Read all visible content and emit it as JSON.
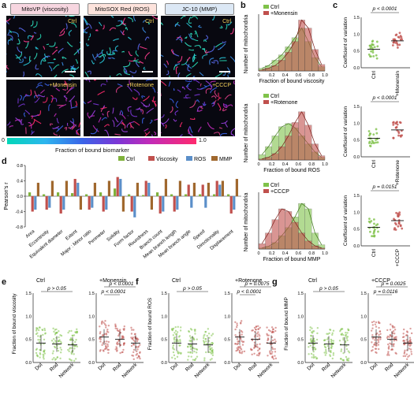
{
  "panel_letters": {
    "a": "a",
    "b": "b",
    "c": "c",
    "d": "d",
    "e": "e",
    "f": "f",
    "g": "g"
  },
  "panel_a": {
    "headers": [
      "MitoVP (viscosity)",
      "MitoSOX Red (ROS)",
      "JC-10 (MMP)"
    ],
    "top_conditions": [
      "Ctrl",
      "Ctrl",
      "Ctrl"
    ],
    "bottom_conditions": [
      "+Monensin",
      "+Rotenone",
      "+CCCP"
    ],
    "colorbar_min": "0",
    "colorbar_max": "1.0",
    "colorbar_label": "Fraction of bound biomarker",
    "header_colors": [
      "#f7d6e0",
      "#fde3dc",
      "#dce8f5"
    ]
  },
  "panel_b": [
    {
      "legend": [
        "Ctrl",
        "+Monensin"
      ],
      "xlabel": "Fraction of bound viscosity",
      "ylabel": "Number of mitochondria"
    },
    {
      "legend": [
        "Ctrl",
        "+Rotenone"
      ],
      "xlabel": "Fraction of bound ROS",
      "ylabel": "Number of mitochondria"
    },
    {
      "legend": [
        "Ctrl",
        "+CCCP"
      ],
      "xlabel": "Fraction of bound MMP",
      "ylabel": "Number of mitochondria"
    }
  ],
  "panel_c": [
    {
      "p": "p < 0.0001",
      "ylabel": "Coefficient of variation",
      "cats": [
        "Ctrl",
        "+Monensin"
      ]
    },
    {
      "p": "p < 0.0001",
      "ylabel": "Coefficient of variation",
      "cats": [
        "Ctrl",
        "+Rotenone"
      ]
    },
    {
      "p": "p = 0.0151",
      "ylabel": "Coefficient of variation",
      "cats": [
        "Ctrl",
        "+CCCP"
      ]
    }
  ],
  "panel_d": {
    "ylabel": "Pearson's r",
    "legend": [
      "Ctrl",
      "Viscosity",
      "ROS",
      "MMP"
    ],
    "colors": [
      "#7fb13b",
      "#c0504d",
      "#5b8fc9",
      "#a0682e"
    ],
    "features": [
      "Area",
      "Eccentricity",
      "Equivalent diameter",
      "Extent",
      "Major : Minor ratio",
      "Perimeter",
      "Solidity",
      "Form factor",
      "Roundness",
      "Branch count",
      "Mean branch length",
      "Mean branch angle",
      "Speed",
      "Directionality",
      "Displacement"
    ]
  },
  "panel_efg": [
    {
      "ylabels": [
        "Fraction of bound viscosity"
      ],
      "titles": [
        "Ctrl",
        "+Monensin"
      ],
      "pvals_left": [
        "p > 0.05"
      ],
      "pvals_right": [
        "p < 0.0001",
        "p < 0.0001"
      ],
      "cats": [
        "Dot",
        "Rod",
        "Network"
      ]
    },
    {
      "ylabels": [
        "Fraction of bound ROS"
      ],
      "titles": [
        "Ctrl",
        "+Rotenone"
      ],
      "pvals_left": [
        "p > 0.05"
      ],
      "pvals_right": [
        "p = 0.0075",
        "p < 0.0001"
      ],
      "cats": [
        "Dot",
        "Rod",
        "Network"
      ]
    },
    {
      "ylabels": [
        "Fraction of bound MMP"
      ],
      "titles": [
        "Ctrl",
        "+CCCP"
      ],
      "pvals_left": [
        "p > 0.05"
      ],
      "pvals_right": [
        "p = 0.0025",
        "p = 0.0116"
      ],
      "cats": [
        "Dot",
        "Rod",
        "Network"
      ]
    }
  ],
  "chart_data": [
    {
      "type": "bar",
      "panel": "b-1",
      "categories": [
        "0",
        "0.1",
        "0.2",
        "0.3",
        "0.4",
        "0.5",
        "0.6",
        "0.7",
        "0.8",
        "0.9"
      ],
      "series": [
        {
          "name": "Ctrl",
          "values": [
            0.05,
            0.1,
            0.2,
            0.3,
            0.45,
            0.62,
            0.8,
            0.55,
            0.25,
            0.08
          ]
        },
        {
          "name": "+Monensin",
          "values": [
            0.02,
            0.05,
            0.1,
            0.2,
            0.35,
            0.55,
            0.95,
            0.8,
            0.4,
            0.12
          ]
        }
      ],
      "xlabel": "Fraction of bound viscosity",
      "ylabel": "Number of mitochondria"
    },
    {
      "type": "bar",
      "panel": "b-2",
      "categories": [
        "0",
        "0.1",
        "0.2",
        "0.3",
        "0.4",
        "0.5",
        "0.6",
        "0.7",
        "0.8",
        "0.9"
      ],
      "series": [
        {
          "name": "Ctrl",
          "values": [
            0.1,
            0.25,
            0.45,
            0.62,
            0.68,
            0.6,
            0.45,
            0.3,
            0.15,
            0.05
          ]
        },
        {
          "name": "+Rotenone",
          "values": [
            0.02,
            0.05,
            0.12,
            0.25,
            0.45,
            0.7,
            0.9,
            0.65,
            0.3,
            0.08
          ]
        }
      ],
      "xlabel": "Fraction of bound ROS",
      "ylabel": "Number of mitochondria"
    },
    {
      "type": "bar",
      "panel": "b-3",
      "categories": [
        "0",
        "0.1",
        "0.2",
        "0.3",
        "0.4",
        "0.5",
        "0.6",
        "0.7",
        "0.8",
        "0.9"
      ],
      "series": [
        {
          "name": "Ctrl",
          "values": [
            0.02,
            0.05,
            0.12,
            0.25,
            0.4,
            0.6,
            0.85,
            0.75,
            0.3,
            0.08
          ]
        },
        {
          "name": "+CCCP",
          "values": [
            0.1,
            0.3,
            0.55,
            0.75,
            0.7,
            0.5,
            0.3,
            0.15,
            0.06,
            0.02
          ]
        }
      ],
      "xlabel": "Fraction of bound MMP",
      "ylabel": "Number of mitochondria"
    },
    {
      "type": "bar",
      "panel": "d",
      "categories": [
        "Area",
        "Eccentricity",
        "Equivalent diameter",
        "Extent",
        "Major : Minor ratio",
        "Perimeter",
        "Solidity",
        "Form factor",
        "Roundness",
        "Branch count",
        "Mean branch length",
        "Mean branch angle",
        "Speed",
        "Directionality",
        "Displacement"
      ],
      "series": [
        {
          "name": "Ctrl",
          "values": [
            0.1,
            0.05,
            0.1,
            0.08,
            0.05,
            0.1,
            0.2,
            0.05,
            0.03,
            0.1,
            0.05,
            0.05,
            0.05,
            0.05,
            0.05
          ]
        },
        {
          "name": "Viscosity",
          "values": [
            -0.4,
            -0.35,
            -0.45,
            0.45,
            -0.35,
            -0.4,
            0.5,
            -0.4,
            0.4,
            -0.45,
            -0.4,
            0.3,
            0.3,
            0.4,
            -0.45
          ]
        },
        {
          "name": "ROS",
          "values": [
            -0.35,
            -0.3,
            -0.35,
            0.35,
            -0.3,
            -0.35,
            0.45,
            -0.55,
            0.35,
            -0.4,
            -0.35,
            -0.3,
            -0.3,
            0.3,
            -0.35
          ]
        },
        {
          "name": "MMP",
          "values": [
            0.35,
            0.4,
            0.4,
            -0.35,
            0.35,
            0.4,
            -0.4,
            0.35,
            -0.35,
            0.45,
            0.4,
            0.35,
            0.35,
            0.4,
            0.45
          ]
        }
      ],
      "ylabel": "Pearson's r",
      "ylim": [
        -0.8,
        0.8
      ]
    }
  ]
}
